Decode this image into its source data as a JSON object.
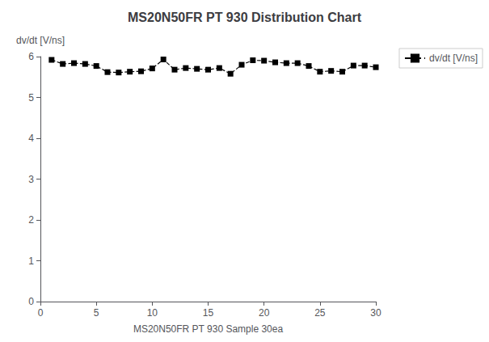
{
  "chart_data": {
    "type": "line",
    "title": "MS20N50FR PT 930 Distribution Chart",
    "xlabel": "MS20N50FR PT 930 Sample 30ea",
    "ylabel": "dv/dt [V/ns]",
    "x": [
      1,
      2,
      3,
      4,
      5,
      6,
      7,
      8,
      9,
      10,
      11,
      12,
      13,
      14,
      15,
      16,
      17,
      18,
      19,
      20,
      21,
      22,
      23,
      24,
      25,
      26,
      27,
      28,
      29,
      30
    ],
    "series": [
      {
        "name": "dv/dt [V/ns]",
        "color": "#000000",
        "marker": "square",
        "line_style": "dashed",
        "values": [
          5.92,
          5.82,
          5.84,
          5.82,
          5.77,
          5.62,
          5.61,
          5.63,
          5.64,
          5.71,
          5.93,
          5.68,
          5.72,
          5.7,
          5.68,
          5.72,
          5.58,
          5.8,
          5.91,
          5.9,
          5.86,
          5.84,
          5.84,
          5.77,
          5.63,
          5.65,
          5.63,
          5.78,
          5.78,
          5.74
        ]
      }
    ],
    "xlim": [
      0,
      30
    ],
    "ylim": [
      0,
      6
    ],
    "xticks": [
      0,
      5,
      10,
      15,
      20,
      25,
      30
    ],
    "yticks": [
      0,
      1,
      2,
      3,
      4,
      5,
      6
    ],
    "grid": false,
    "legend": "upper right"
  }
}
